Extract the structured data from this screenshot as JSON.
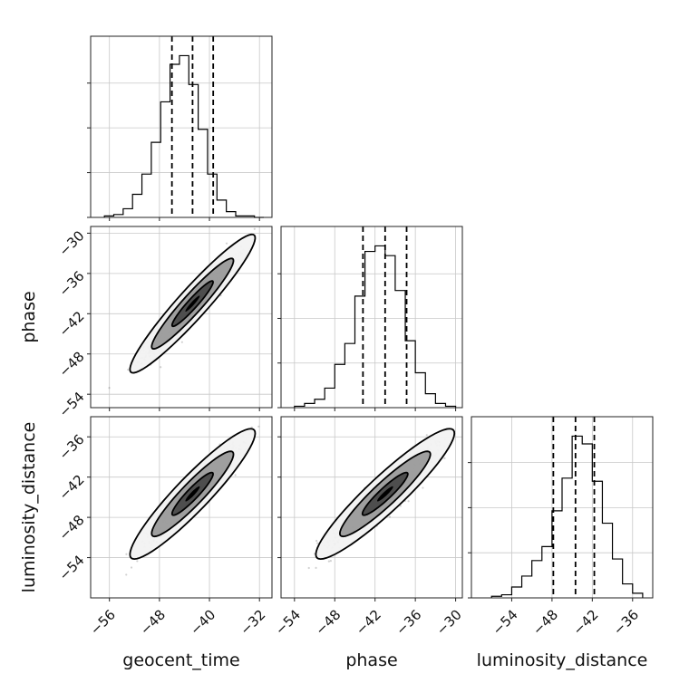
{
  "chart_data": {
    "type": "corner",
    "parameters": [
      "geocent_time",
      "phase",
      "luminosity_distance"
    ],
    "axis_labels": [
      "geocent_time",
      "phase",
      "luminosity_distance"
    ],
    "ranges": {
      "geocent_time": [
        -59,
        -30
      ],
      "phase": [
        -56,
        -29
      ],
      "luminosity_distance": [
        -60,
        -33
      ]
    },
    "ticks": {
      "geocent_time": {
        "values": [
          -56,
          -48,
          -40,
          -32
        ],
        "labels": [
          "−56",
          "−48",
          "−40",
          "−32"
        ]
      },
      "phase": {
        "values": [
          -54,
          -48,
          -42,
          -36,
          -30
        ],
        "labels": [
          "−54",
          "−48",
          "−42",
          "−36",
          "−30"
        ]
      },
      "luminosity_distance": {
        "values": [
          -54,
          -48,
          -42,
          -36
        ],
        "labels": [
          "−54",
          "−48",
          "−42",
          "−36"
        ]
      }
    },
    "marginals": {
      "geocent_time": {
        "bin_edges": [
          -56.8,
          -55.3,
          -53.8,
          -52.3,
          -50.8,
          -49.3,
          -47.8,
          -46.3,
          -44.8,
          -43.3,
          -41.8,
          -40.3,
          -38.8,
          -37.3,
          -35.8,
          -34.3,
          -32.8,
          -31.3
        ],
        "counts": [
          1,
          2,
          6,
          16,
          30,
          52,
          80,
          106,
          112,
          92,
          61,
          30,
          12,
          4,
          1,
          1,
          0
        ],
        "quantiles": [
          -46.0,
          -42.7,
          -39.4
        ]
      },
      "phase": {
        "bin_edges": [
          -54.0,
          -52.5,
          -51.0,
          -49.5,
          -48.0,
          -46.5,
          -45.0,
          -43.5,
          -42.0,
          -40.5,
          -39.0,
          -37.5,
          -36.0,
          -34.5,
          -33.0,
          -31.5,
          -30.0
        ],
        "counts": [
          1,
          3,
          6,
          14,
          31,
          46,
          80,
          112,
          116,
          109,
          84,
          48,
          25,
          10,
          3,
          1
        ],
        "quantiles": [
          -43.8,
          -40.5,
          -37.3
        ]
      },
      "luminosity_distance": {
        "bin_edges": [
          -57.0,
          -55.5,
          -54.0,
          -52.5,
          -51.0,
          -49.5,
          -48.0,
          -46.5,
          -45.0,
          -43.5,
          -42.0,
          -40.5,
          -39.0,
          -37.5,
          -36.0,
          -34.5
        ],
        "counts": [
          1,
          2,
          7,
          14,
          24,
          33,
          56,
          77,
          104,
          99,
          75,
          48,
          25,
          9,
          3
        ],
        "quantiles": [
          -47.8,
          -44.5,
          -41.7
        ]
      }
    },
    "joint": [
      {
        "x": "geocent_time",
        "y": "phase",
        "center": [
          -42.7,
          -40.5
        ],
        "sigma": [
          3.3,
          3.4
        ],
        "correlation": 0.95,
        "contour_levels": [
          0.39,
          0.86,
          0.99
        ]
      },
      {
        "x": "geocent_time",
        "y": "luminosity_distance",
        "center": [
          -42.7,
          -44.5
        ],
        "sigma": [
          3.3,
          3.2
        ],
        "correlation": 0.93,
        "contour_levels": [
          0.39,
          0.86,
          0.99
        ]
      },
      {
        "x": "phase",
        "y": "luminosity_distance",
        "center": [
          -40.5,
          -44.5
        ],
        "sigma": [
          3.4,
          3.2
        ],
        "correlation": 0.93,
        "contour_levels": [
          0.39,
          0.86,
          0.99
        ]
      }
    ],
    "grid": true
  }
}
